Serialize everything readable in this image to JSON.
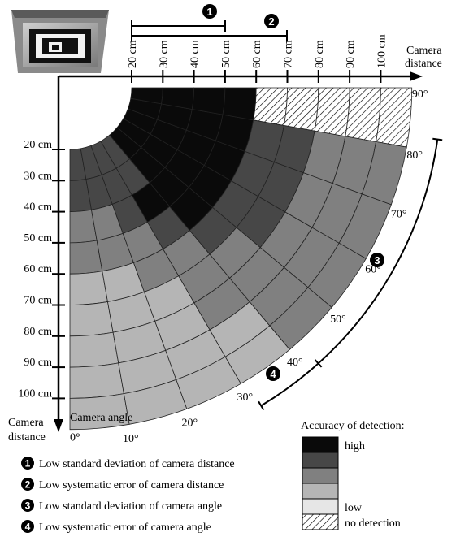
{
  "diagram": {
    "axes": {
      "distance_axis_title": [
        "Camera",
        "distance"
      ],
      "distance_ticks": [
        "20 cm",
        "30 cm",
        "40 cm",
        "50 cm",
        "60 cm",
        "70 cm",
        "80 cm",
        "90 cm",
        "100 cm"
      ],
      "angle_axis_title": "Camera angle",
      "angle_ticks": [
        "0°",
        "10°",
        "20°",
        "30°",
        "40°",
        "50°",
        "60°",
        "70°",
        "80°",
        "90°"
      ]
    },
    "markers": [
      {
        "id": "1",
        "label": "1"
      },
      {
        "id": "2",
        "label": "2"
      },
      {
        "id": "3",
        "label": "3"
      },
      {
        "id": "4",
        "label": "4"
      }
    ],
    "notes": [
      {
        "marker": "1",
        "text": "Low standard deviation of camera distance"
      },
      {
        "marker": "2",
        "text": "Low systematic error of camera distance"
      },
      {
        "marker": "3",
        "text": "Low standard deviation of camera angle"
      },
      {
        "marker": "4",
        "text": "Low systematic error of camera angle"
      }
    ],
    "legend": {
      "title": "Accuracy of detection:",
      "items": [
        {
          "label": "high",
          "color": "#0a0a0a"
        },
        {
          "label": "",
          "color": "#474747"
        },
        {
          "label": "",
          "color": "#808080"
        },
        {
          "label": "",
          "color": "#b5b5b5"
        },
        {
          "label": "low",
          "color": "#e6e6e6"
        },
        {
          "label": "no detection",
          "color": "hatch"
        }
      ]
    },
    "accuracy_grid": {
      "distances_cm": [
        20,
        30,
        40,
        50,
        60,
        70,
        80,
        90,
        100
      ],
      "angle_bins_deg": [
        0,
        10,
        20,
        30,
        40,
        50,
        60,
        70,
        80,
        90
      ],
      "levels_by_distance": [
        [
          2,
          2,
          2,
          2,
          1,
          1,
          1,
          1,
          1
        ],
        [
          2,
          2,
          2,
          2,
          1,
          1,
          1,
          1,
          1
        ],
        [
          3,
          3,
          2,
          1,
          1,
          1,
          1,
          1,
          1
        ],
        [
          3,
          3,
          3,
          2,
          1,
          1,
          1,
          1,
          1
        ],
        [
          4,
          4,
          3,
          3,
          2,
          2,
          2,
          2,
          5
        ],
        [
          4,
          4,
          4,
          3,
          3,
          2,
          2,
          2,
          5
        ],
        [
          4,
          4,
          4,
          3,
          3,
          3,
          3,
          3,
          5
        ],
        [
          4,
          4,
          4,
          4,
          3,
          3,
          3,
          3,
          5
        ],
        [
          4,
          4,
          4,
          4,
          3,
          3,
          3,
          3,
          5
        ]
      ]
    }
  }
}
